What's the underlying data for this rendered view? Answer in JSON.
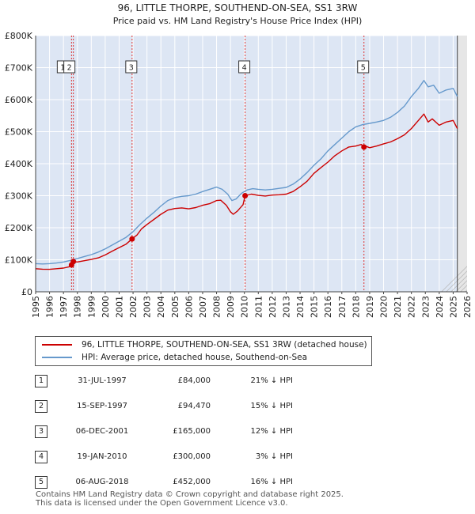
{
  "title_line1": "96, LITTLE THORPE, SOUTHEND-ON-SEA, SS1 3RW",
  "title_line2": "Price paid vs. HM Land Registry's House Price Index (HPI)",
  "chart_data": {
    "type": "line",
    "title": "96, LITTLE THORPE, SOUTHEND-ON-SEA, SS1 3RW",
    "subtitle": "Price paid vs. HM Land Registry's House Price Index (HPI)",
    "xlim": [
      1995,
      2026
    ],
    "ylim": [
      0,
      800000
    ],
    "y_ticks": [
      {
        "value": 0,
        "label": "£0"
      },
      {
        "value": 100000,
        "label": "£100K"
      },
      {
        "value": 200000,
        "label": "£200K"
      },
      {
        "value": 300000,
        "label": "£300K"
      },
      {
        "value": 400000,
        "label": "£400K"
      },
      {
        "value": 500000,
        "label": "£500K"
      },
      {
        "value": 600000,
        "label": "£600K"
      },
      {
        "value": 700000,
        "label": "£700K"
      },
      {
        "value": 800000,
        "label": "£800K"
      }
    ],
    "x_ticks": [
      "1995",
      "1996",
      "1997",
      "1998",
      "1999",
      "2000",
      "2001",
      "2002",
      "2003",
      "2004",
      "2005",
      "2006",
      "2007",
      "2008",
      "2009",
      "2010",
      "2011",
      "2012",
      "2013",
      "2014",
      "2015",
      "2016",
      "2017",
      "2018",
      "2019",
      "2020",
      "2021",
      "2022",
      "2023",
      "2024",
      "2025",
      "2026"
    ],
    "series": [
      {
        "name": "96, LITTLE THORPE, SOUTHEND-ON-SEA, SS1 3RW (detached house)",
        "color": "#cc0000",
        "points": [
          [
            1995.0,
            72000
          ],
          [
            1995.5,
            70500
          ],
          [
            1996.0,
            70000
          ],
          [
            1996.5,
            72000
          ],
          [
            1997.0,
            74000
          ],
          [
            1997.4,
            78000
          ],
          [
            1997.58,
            84000
          ],
          [
            1997.71,
            94470
          ],
          [
            1998.0,
            93000
          ],
          [
            1998.5,
            97000
          ],
          [
            1999.0,
            101000
          ],
          [
            1999.5,
            106000
          ],
          [
            2000.0,
            115000
          ],
          [
            2000.5,
            127000
          ],
          [
            2001.0,
            138000
          ],
          [
            2001.5,
            149000
          ],
          [
            2001.93,
            165000
          ],
          [
            2002.3,
            178000
          ],
          [
            2002.6,
            196000
          ],
          [
            2003.0,
            210000
          ],
          [
            2003.5,
            226000
          ],
          [
            2004.0,
            242000
          ],
          [
            2004.5,
            255000
          ],
          [
            2005.0,
            260000
          ],
          [
            2005.5,
            262000
          ],
          [
            2006.0,
            259000
          ],
          [
            2006.5,
            263000
          ],
          [
            2007.0,
            270000
          ],
          [
            2007.5,
            275000
          ],
          [
            2008.0,
            285000
          ],
          [
            2008.3,
            286000
          ],
          [
            2008.7,
            270000
          ],
          [
            2009.0,
            250000
          ],
          [
            2009.2,
            242000
          ],
          [
            2009.5,
            252000
          ],
          [
            2009.9,
            272000
          ],
          [
            2010.05,
            300000
          ],
          [
            2010.5,
            305000
          ],
          [
            2011.0,
            301000
          ],
          [
            2011.5,
            299000
          ],
          [
            2012.0,
            302000
          ],
          [
            2012.5,
            303000
          ],
          [
            2013.0,
            305000
          ],
          [
            2013.5,
            313000
          ],
          [
            2014.0,
            328000
          ],
          [
            2014.5,
            345000
          ],
          [
            2015.0,
            370000
          ],
          [
            2015.5,
            388000
          ],
          [
            2016.0,
            405000
          ],
          [
            2016.5,
            425000
          ],
          [
            2017.0,
            440000
          ],
          [
            2017.5,
            452000
          ],
          [
            2018.0,
            455000
          ],
          [
            2018.4,
            460000
          ],
          [
            2018.55,
            452000
          ],
          [
            2018.7,
            455000
          ],
          [
            2019.0,
            450000
          ],
          [
            2019.5,
            455000
          ],
          [
            2020.0,
            462000
          ],
          [
            2020.5,
            468000
          ],
          [
            2021.0,
            478000
          ],
          [
            2021.5,
            490000
          ],
          [
            2022.0,
            510000
          ],
          [
            2022.5,
            535000
          ],
          [
            2022.9,
            555000
          ],
          [
            2023.2,
            530000
          ],
          [
            2023.5,
            540000
          ],
          [
            2024.0,
            520000
          ],
          [
            2024.5,
            530000
          ],
          [
            2025.0,
            535000
          ],
          [
            2025.3,
            510000
          ]
        ]
      },
      {
        "name": "HPI: Average price, detached house, Southend-on-Sea",
        "color": "#6699cc",
        "points": [
          [
            1995.0,
            88000
          ],
          [
            1995.5,
            87000
          ],
          [
            1996.0,
            88000
          ],
          [
            1996.5,
            90000
          ],
          [
            1997.0,
            93000
          ],
          [
            1997.5,
            98000
          ],
          [
            1998.0,
            104000
          ],
          [
            1998.5,
            110000
          ],
          [
            1999.0,
            116000
          ],
          [
            1999.5,
            124000
          ],
          [
            2000.0,
            134000
          ],
          [
            2000.5,
            146000
          ],
          [
            2001.0,
            158000
          ],
          [
            2001.5,
            170000
          ],
          [
            2002.0,
            188000
          ],
          [
            2002.5,
            210000
          ],
          [
            2003.0,
            230000
          ],
          [
            2003.5,
            248000
          ],
          [
            2004.0,
            268000
          ],
          [
            2004.5,
            285000
          ],
          [
            2005.0,
            294000
          ],
          [
            2005.5,
            298000
          ],
          [
            2006.0,
            300000
          ],
          [
            2006.5,
            305000
          ],
          [
            2007.0,
            313000
          ],
          [
            2007.5,
            320000
          ],
          [
            2008.0,
            327000
          ],
          [
            2008.4,
            320000
          ],
          [
            2008.8,
            305000
          ],
          [
            2009.1,
            285000
          ],
          [
            2009.4,
            290000
          ],
          [
            2009.8,
            308000
          ],
          [
            2010.2,
            318000
          ],
          [
            2010.6,
            322000
          ],
          [
            2011.0,
            320000
          ],
          [
            2011.5,
            318000
          ],
          [
            2012.0,
            320000
          ],
          [
            2012.5,
            323000
          ],
          [
            2013.0,
            326000
          ],
          [
            2013.5,
            336000
          ],
          [
            2014.0,
            352000
          ],
          [
            2014.5,
            372000
          ],
          [
            2015.0,
            395000
          ],
          [
            2015.5,
            415000
          ],
          [
            2016.0,
            440000
          ],
          [
            2016.5,
            460000
          ],
          [
            2017.0,
            480000
          ],
          [
            2017.5,
            500000
          ],
          [
            2018.0,
            515000
          ],
          [
            2018.5,
            522000
          ],
          [
            2019.0,
            526000
          ],
          [
            2019.5,
            530000
          ],
          [
            2020.0,
            535000
          ],
          [
            2020.5,
            545000
          ],
          [
            2021.0,
            560000
          ],
          [
            2021.5,
            580000
          ],
          [
            2022.0,
            610000
          ],
          [
            2022.5,
            635000
          ],
          [
            2022.9,
            660000
          ],
          [
            2023.2,
            640000
          ],
          [
            2023.6,
            645000
          ],
          [
            2024.0,
            620000
          ],
          [
            2024.5,
            630000
          ],
          [
            2025.0,
            635000
          ],
          [
            2025.3,
            610000
          ]
        ]
      }
    ],
    "sales": [
      {
        "num": "1",
        "x": 1997.58,
        "y": 84000
      },
      {
        "num": "2",
        "x": 1997.71,
        "y": 94470
      },
      {
        "num": "3",
        "x": 2001.93,
        "y": 165000
      },
      {
        "num": "4",
        "x": 2010.05,
        "y": 300000
      },
      {
        "num": "5",
        "x": 2018.59,
        "y": 452000
      }
    ],
    "vlines": [
      1997.58,
      1997.71,
      2001.93,
      2010.05,
      2018.59
    ],
    "forecast_start": 2025.3
  },
  "legend": {
    "property_label": "96, LITTLE THORPE, SOUTHEND-ON-SEA, SS1 3RW (detached house)",
    "hpi_label": "HPI: Average price, detached house, Southend-on-Sea",
    "property_color": "#cc0000",
    "hpi_color": "#6699cc"
  },
  "sales_table": [
    {
      "num": "1",
      "date": "31-JUL-1997",
      "price": "£84,000",
      "hpi": "21% ↓ HPI"
    },
    {
      "num": "2",
      "date": "15-SEP-1997",
      "price": "£94,470",
      "hpi": "15% ↓ HPI"
    },
    {
      "num": "3",
      "date": "06-DEC-2001",
      "price": "£165,000",
      "hpi": "12% ↓ HPI"
    },
    {
      "num": "4",
      "date": "19-JAN-2010",
      "price": "£300,000",
      "hpi": "3% ↓ HPI"
    },
    {
      "num": "5",
      "date": "06-AUG-2018",
      "price": "£452,000",
      "hpi": "16% ↓ HPI"
    }
  ],
  "footer": {
    "line1": "Contains HM Land Registry data © Crown copyright and database right 2025.",
    "line2": "This data is licensed under the Open Government Licence v3.0."
  }
}
